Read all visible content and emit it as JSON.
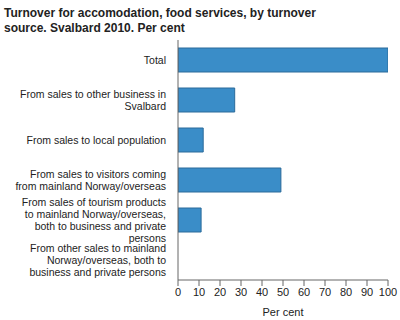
{
  "chart_data": {
    "type": "bar",
    "title": "Turnover for accomodation, food services, by turnover source. Svalbard 2010. Per cent",
    "orientation": "horizontal",
    "categories": [
      "Total",
      "From sales to other business in Svalbard",
      "From sales to local population",
      "From sales to visitors coming from mainland Norway/overseas",
      "From sales of tourism products to mainland Norway/overseas, both to business and private persons",
      "From other sales to mainland Norway/overseas, both to business and private persons"
    ],
    "values": [
      100,
      27,
      12,
      49,
      11,
      0
    ],
    "color": "#3a8dc8",
    "x_label": "Per cent",
    "xlim": [
      0,
      100
    ],
    "xticks": [
      0,
      10,
      20,
      30,
      40,
      50,
      60,
      70,
      80,
      90,
      100
    ],
    "grid": false
  }
}
